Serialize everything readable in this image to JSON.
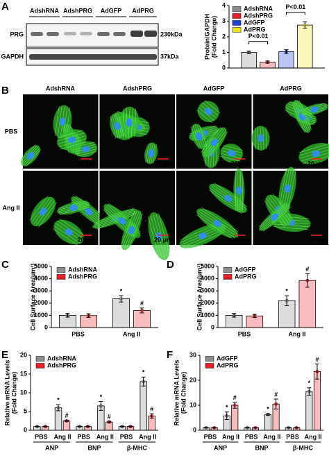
{
  "panels": [
    "A",
    "B",
    "C",
    "D",
    "E",
    "F"
  ],
  "blot": {
    "lanes": [
      "AdshRNA",
      "AdshPRG",
      "AdGFP",
      "AdPRG"
    ],
    "proteins": [
      "PRG",
      "GAPDH"
    ],
    "sizes": [
      "230kDa",
      "37kDa"
    ]
  },
  "micrographs": {
    "columns": [
      "AdshRNA",
      "AdshPRG",
      "AdGFP",
      "AdPRG"
    ],
    "rows": [
      "PBS",
      "Ang II"
    ],
    "scale_bar": "20 μm"
  },
  "chart_data": [
    {
      "type": "bar",
      "ylabel": [
        "Protein/GAPDH",
        "(Fold Change)"
      ],
      "ylim": [
        0,
        4
      ],
      "yticks": [
        0,
        1,
        2,
        3,
        4
      ],
      "series": [
        {
          "name": "AdshRNA",
          "color": "#8c8c8c",
          "values": [
            1.0
          ],
          "errors": [
            0.08
          ]
        },
        {
          "name": "AdshPRG",
          "color": "#e8202a",
          "values": [
            0.38
          ],
          "errors": [
            0.07
          ]
        },
        {
          "name": "AdGFP",
          "color": "#1f3fd1",
          "values": [
            1.05
          ],
          "errors": [
            0.12
          ]
        },
        {
          "name": "AdPRG",
          "color": "#f2e21a",
          "values": [
            2.75
          ],
          "errors": [
            0.2
          ]
        }
      ],
      "comparisons": [
        {
          "label": "P<0.01",
          "between": [
            0,
            1
          ]
        },
        {
          "label": "P<0.01",
          "between": [
            2,
            3
          ]
        }
      ]
    },
    {
      "type": "bar",
      "ylabel": [
        "Cell Surface Area(μm²)"
      ],
      "categories": [
        "PBS",
        "Ang II"
      ],
      "ylim": [
        0,
        5000
      ],
      "yticks": [
        0,
        1000,
        2000,
        3000,
        4000,
        5000
      ],
      "series": [
        {
          "name": "AdshRNA",
          "color": "#8c8c8c",
          "values": [
            1000,
            2350
          ],
          "errors": [
            150,
            260
          ],
          "sig": [
            null,
            "*"
          ]
        },
        {
          "name": "AdshPRG",
          "color": "#e8202a",
          "values": [
            980,
            1400
          ],
          "errors": [
            150,
            200
          ],
          "sig": [
            null,
            "#"
          ]
        }
      ]
    },
    {
      "type": "bar",
      "ylabel": [
        "Cell Surface Area(μm²)"
      ],
      "categories": [
        "PBS",
        "Ang II"
      ],
      "ylim": [
        0,
        5000
      ],
      "yticks": [
        0,
        1000,
        2000,
        3000,
        4000,
        5000
      ],
      "series": [
        {
          "name": "AdGFP",
          "color": "#8c8c8c",
          "values": [
            1000,
            2200
          ],
          "errors": [
            150,
            400
          ],
          "sig": [
            null,
            "*"
          ]
        },
        {
          "name": "AdPRG",
          "color": "#e8202a",
          "values": [
            950,
            3850
          ],
          "errors": [
            130,
            550
          ],
          "sig": [
            null,
            "#"
          ]
        }
      ]
    },
    {
      "type": "bar",
      "ylabel": [
        "Relative mRNA Levels",
        "(Fold Change)"
      ],
      "categories": [
        "PBS",
        "Ang II",
        "PBS",
        "Ang II",
        "PBS",
        "Ang II"
      ],
      "groups": [
        "ANP",
        "BNP",
        "β-MHC"
      ],
      "ylim": [
        0,
        20
      ],
      "yticks": [
        0,
        5,
        10,
        15,
        20
      ],
      "series": [
        {
          "name": "AdshRNA",
          "color": "#8c8c8c",
          "values": [
            1,
            6,
            1,
            6.5,
            1,
            13
          ],
          "errors": [
            0.1,
            0.8,
            0.1,
            1.2,
            0.1,
            1.2
          ],
          "sig": [
            null,
            "*",
            null,
            "*",
            null,
            "*"
          ]
        },
        {
          "name": "AdshPRG",
          "color": "#e8202a",
          "values": [
            1,
            2.5,
            1,
            2.2,
            1,
            3.8
          ],
          "errors": [
            0.1,
            0.2,
            0.1,
            0.2,
            0.1,
            0.6
          ],
          "sig": [
            null,
            "#",
            null,
            "#",
            null,
            "#"
          ]
        }
      ]
    },
    {
      "type": "bar",
      "ylabel": [
        "Relative mRNA Levels",
        "(Fold Change)"
      ],
      "categories": [
        "PBS",
        "Ang II",
        "PBS",
        "Ang II",
        "PBS",
        "Ang II"
      ],
      "groups": [
        "ANP",
        "BNP",
        "β-MHC"
      ],
      "ylim": [
        0,
        30
      ],
      "yticks": [
        0,
        10,
        20,
        30
      ],
      "series": [
        {
          "name": "AdGFP",
          "color": "#8c8c8c",
          "values": [
            1,
            5.8,
            1,
            6.3,
            1,
            15.5
          ],
          "errors": [
            0.1,
            1.5,
            0.1,
            0.3,
            0.1,
            1.5
          ],
          "sig": [
            null,
            "*",
            null,
            "*",
            null,
            "*"
          ]
        },
        {
          "name": "AdPRG",
          "color": "#e8202a",
          "values": [
            1,
            10,
            1,
            10.5,
            1,
            23.5
          ],
          "errors": [
            0.1,
            1.2,
            0.1,
            2.0,
            0.1,
            3.0
          ],
          "sig": [
            null,
            "#",
            null,
            "#",
            null,
            "#"
          ]
        }
      ]
    }
  ]
}
